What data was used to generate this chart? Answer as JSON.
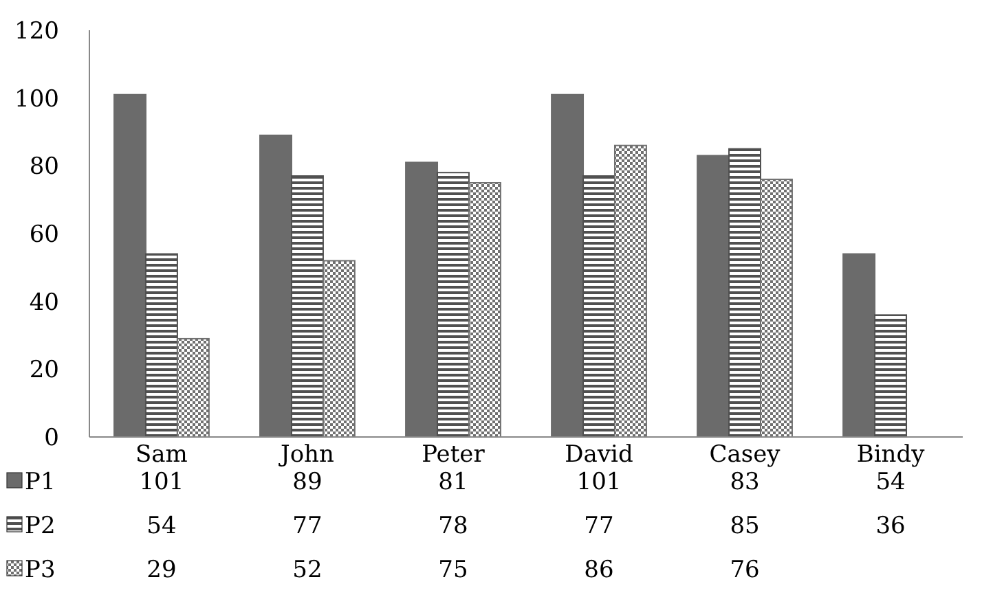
{
  "chart_data": {
    "type": "bar",
    "categories": [
      "Sam",
      "John",
      "Peter",
      "David",
      "Casey",
      "Bindy"
    ],
    "series": [
      {
        "name": "P1",
        "color": "#6b6b6b",
        "values": [
          101,
          89,
          81,
          101,
          83,
          54
        ]
      },
      {
        "name": "P2",
        "color": "#505050",
        "values": [
          54,
          77,
          78,
          77,
          85,
          36
        ]
      },
      {
        "name": "P3",
        "color": "#707070",
        "values": [
          29,
          52,
          75,
          86,
          76,
          null
        ]
      }
    ],
    "ylim": [
      0,
      120
    ],
    "yticks": [
      0,
      20,
      40,
      60,
      80,
      100,
      120
    ],
    "data_labels": true,
    "legend": "bottom",
    "grid": false
  }
}
